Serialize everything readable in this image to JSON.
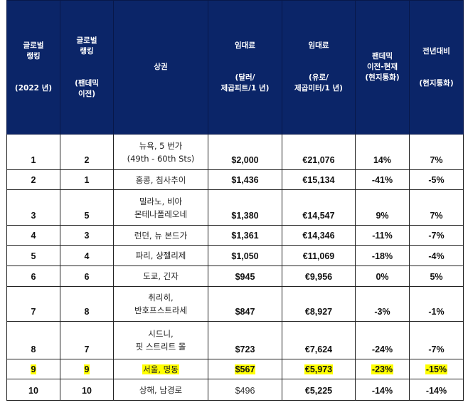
{
  "table": {
    "headers": [
      "글로벌\n랭킹\n\n\n(2022 년)",
      "글로벌\n랭킹\n\n\n(팬데믹\n이전)",
      "상권",
      "임대료\n\n\n(달러/\n제곱피트/1 년)",
      "임대료\n\n\n(유로/\n제곱미터/1 년)",
      "팬데믹\n이전-현재\n(현지통화)",
      "전년대비\n\n\n(현지통화)"
    ],
    "highlight_color": "#ffff00",
    "header_bg": "#0b2568",
    "rows": [
      {
        "rank_2022": "1",
        "rank_pre": "2",
        "district": "뉴욕, 5 번가\n(49th - 60th Sts)",
        "usd": "$2,000",
        "eur": "€21,076",
        "pandemic_change": "14%",
        "yoy": "7%",
        "height": 50,
        "highlight": false
      },
      {
        "rank_2022": "2",
        "rank_pre": "1",
        "district": "홍콩, 침사추이",
        "usd": "$1,436",
        "eur": "€15,134",
        "pandemic_change": "-41%",
        "yoy": "-5%",
        "height": 28,
        "highlight": false
      },
      {
        "rank_2022": "3",
        "rank_pre": "5",
        "district": "밀라노, 비아\n몬테나폴레오네",
        "usd": "$1,380",
        "eur": "€14,547",
        "pandemic_change": "9%",
        "yoy": "7%",
        "height": 50,
        "highlight": false
      },
      {
        "rank_2022": "4",
        "rank_pre": "3",
        "district": "런던, 뉴 본드가",
        "usd": "$1,361",
        "eur": "€14,346",
        "pandemic_change": "-11%",
        "yoy": "-7%",
        "height": 28,
        "highlight": false
      },
      {
        "rank_2022": "5",
        "rank_pre": "4",
        "district": "파리, 샹젤리제",
        "usd": "$1,050",
        "eur": "€11,069",
        "pandemic_change": "-18%",
        "yoy": "-4%",
        "height": 29,
        "highlight": false
      },
      {
        "rank_2022": "6",
        "rank_pre": "6",
        "district": "도쿄, 긴자",
        "usd": "$945",
        "eur": "€9,956",
        "pandemic_change": "0%",
        "yoy": "5%",
        "height": 29,
        "highlight": false
      },
      {
        "rank_2022": "7",
        "rank_pre": "8",
        "district": "취리히,\n반호프스트라세",
        "usd": "$847",
        "eur": "€8,927",
        "pandemic_change": "-3%",
        "yoy": "-1%",
        "height": 49,
        "highlight": false
      },
      {
        "rank_2022": "8",
        "rank_pre": "7",
        "district": "시드니,\n핏 스트리트 몰",
        "usd": "$723",
        "eur": "€7,624",
        "pandemic_change": "-24%",
        "yoy": "-7%",
        "height": 53,
        "highlight": false
      },
      {
        "rank_2022": "9",
        "rank_pre": "9",
        "district": "서울, 명동",
        "usd": "$567",
        "eur": "€5,973",
        "pandemic_change": "-23%",
        "yoy": "-15%",
        "height": 28,
        "highlight": true
      },
      {
        "rank_2022": "10",
        "rank_pre": "10",
        "district": "상해, 남경로",
        "usd": "$496",
        "eur": "€5,225",
        "pandemic_change": "-14%",
        "yoy": "-14%",
        "height": 30,
        "highlight": false
      }
    ]
  }
}
